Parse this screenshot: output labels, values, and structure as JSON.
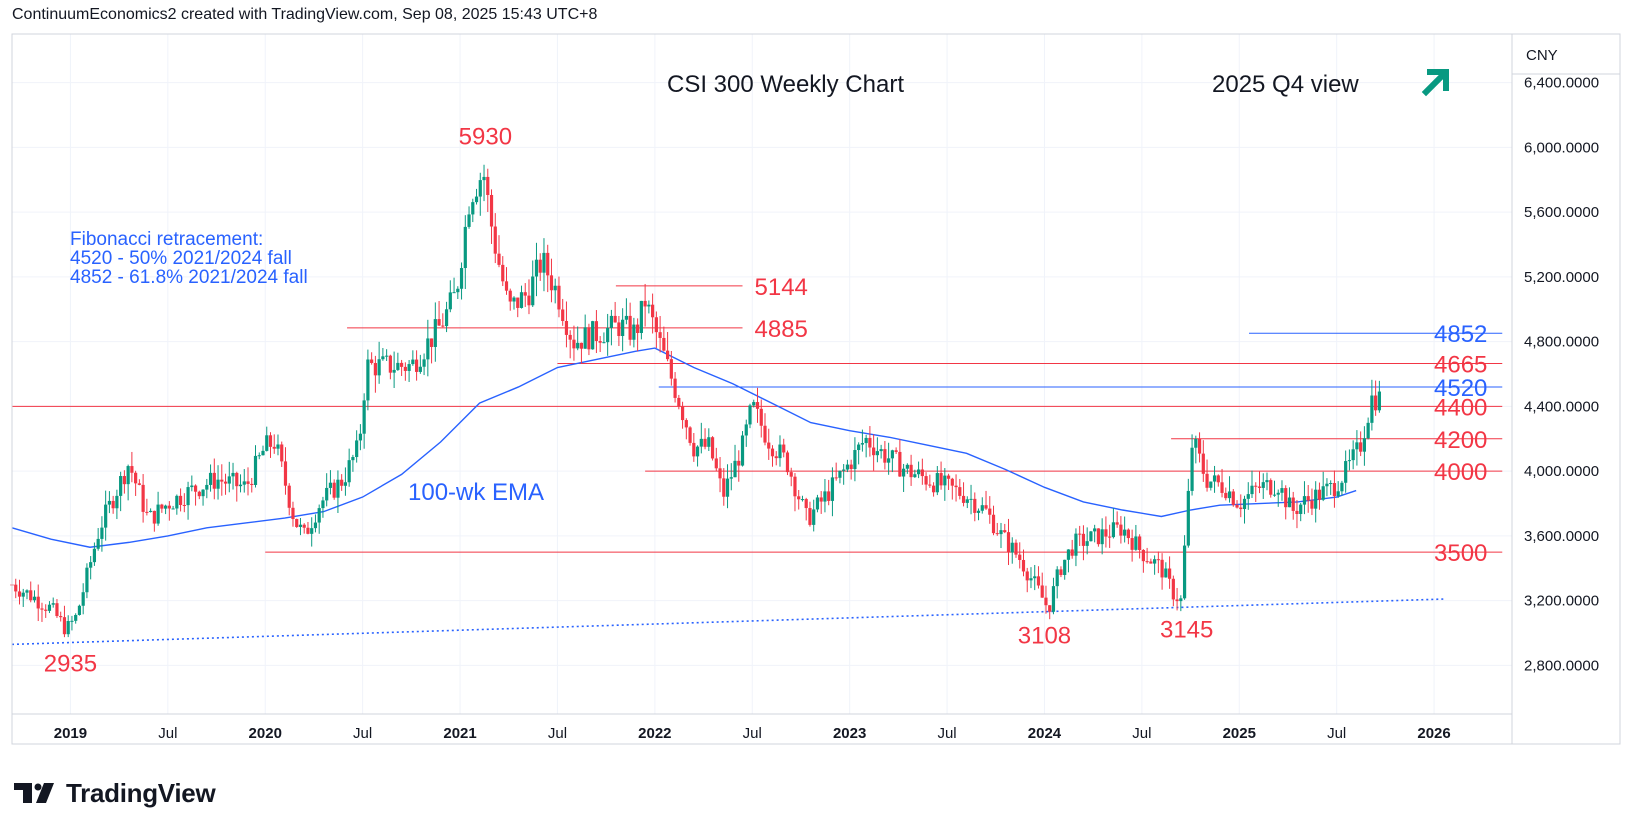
{
  "header": {
    "text": "ContinuumEconomics2 created with TradingView.com, Sep 08, 2025 15:43 UTC+8"
  },
  "footer": {
    "brand": "TradingView"
  },
  "colors": {
    "up": "#089981",
    "down": "#f23645",
    "ema": "#2962ff",
    "level": "#f23645",
    "fib": "#2962ff",
    "arrow": "#089981"
  },
  "chart_data": {
    "type": "candlestick",
    "title": "CSI 300 Weekly Chart",
    "subtitle": "2025 Q4 view",
    "currency": "CNY",
    "ylim": [
      2500,
      6700
    ],
    "y_ticks": [
      "6,400.0000",
      "6,000.0000",
      "5,600.0000",
      "5,200.0000",
      "4,800.0000",
      "4,400.0000",
      "4,000.0000",
      "3,600.0000",
      "3,200.0000",
      "2,800.0000"
    ],
    "y_tick_values": [
      6400,
      6000,
      5600,
      5200,
      4800,
      4400,
      4000,
      3600,
      3200,
      2800
    ],
    "x_range": [
      2018.7,
      2026.4
    ],
    "x_ticks": [
      {
        "label": "2019",
        "t": 2019.0,
        "bold": true
      },
      {
        "label": "Jul",
        "t": 2019.5,
        "bold": false
      },
      {
        "label": "2020",
        "t": 2020.0,
        "bold": true
      },
      {
        "label": "Jul",
        "t": 2020.5,
        "bold": false
      },
      {
        "label": "2021",
        "t": 2021.0,
        "bold": true
      },
      {
        "label": "Jul",
        "t": 2021.5,
        "bold": false
      },
      {
        "label": "2022",
        "t": 2022.0,
        "bold": true
      },
      {
        "label": "Jul",
        "t": 2022.5,
        "bold": false
      },
      {
        "label": "2023",
        "t": 2023.0,
        "bold": true
      },
      {
        "label": "Jul",
        "t": 2023.5,
        "bold": false
      },
      {
        "label": "2024",
        "t": 2024.0,
        "bold": true
      },
      {
        "label": "Jul",
        "t": 2024.5,
        "bold": false
      },
      {
        "label": "2025",
        "t": 2025.0,
        "bold": true
      },
      {
        "label": "Jul",
        "t": 2025.5,
        "bold": false
      },
      {
        "label": "2026",
        "t": 2026.0,
        "bold": true
      }
    ],
    "price_path": [
      [
        2018.7,
        3300
      ],
      [
        2018.8,
        3230
      ],
      [
        2018.9,
        3150
      ],
      [
        2018.98,
        3020
      ],
      [
        2019.03,
        3100
      ],
      [
        2019.15,
        3650
      ],
      [
        2019.3,
        4050
      ],
      [
        2019.4,
        3700
      ],
      [
        2019.5,
        3800
      ],
      [
        2019.62,
        3880
      ],
      [
        2019.75,
        3950
      ],
      [
        2019.9,
        3900
      ],
      [
        2020.0,
        4150
      ],
      [
        2020.05,
        4180
      ],
      [
        2020.15,
        3700
      ],
      [
        2020.2,
        3600
      ],
      [
        2020.28,
        3800
      ],
      [
        2020.4,
        3950
      ],
      [
        2020.48,
        4150
      ],
      [
        2020.52,
        4650
      ],
      [
        2020.62,
        4650
      ],
      [
        2020.75,
        4650
      ],
      [
        2020.9,
        4900
      ],
      [
        2020.98,
        5100
      ],
      [
        2021.05,
        5700
      ],
      [
        2021.12,
        5850
      ],
      [
        2021.17,
        5450
      ],
      [
        2021.25,
        5000
      ],
      [
        2021.35,
        5100
      ],
      [
        2021.42,
        5300
      ],
      [
        2021.5,
        5100
      ],
      [
        2021.58,
        4800
      ],
      [
        2021.7,
        4850
      ],
      [
        2021.82,
        4900
      ],
      [
        2021.9,
        4850
      ],
      [
        2021.95,
        5050
      ],
      [
        2022.05,
        4700
      ],
      [
        2022.12,
        4450
      ],
      [
        2022.2,
        4150
      ],
      [
        2022.28,
        4150
      ],
      [
        2022.35,
        3850
      ],
      [
        2022.45,
        4150
      ],
      [
        2022.5,
        4400
      ],
      [
        2022.58,
        4200
      ],
      [
        2022.68,
        4050
      ],
      [
        2022.78,
        3700
      ],
      [
        2022.88,
        3850
      ],
      [
        2023.0,
        4050
      ],
      [
        2023.08,
        4200
      ],
      [
        2023.18,
        4100
      ],
      [
        2023.3,
        4000
      ],
      [
        2023.4,
        3950
      ],
      [
        2023.5,
        3900
      ],
      [
        2023.6,
        3850
      ],
      [
        2023.7,
        3750
      ],
      [
        2023.78,
        3600
      ],
      [
        2023.88,
        3450
      ],
      [
        2023.95,
        3300
      ],
      [
        2024.02,
        3150
      ],
      [
        2024.08,
        3400
      ],
      [
        2024.15,
        3550
      ],
      [
        2024.28,
        3600
      ],
      [
        2024.4,
        3650
      ],
      [
        2024.5,
        3500
      ],
      [
        2024.6,
        3400
      ],
      [
        2024.66,
        3250
      ],
      [
        2024.7,
        3200
      ],
      [
        2024.73,
        3700
      ],
      [
        2024.76,
        4200
      ],
      [
        2024.83,
        3950
      ],
      [
        2024.93,
        3900
      ],
      [
        2025.0,
        3800
      ],
      [
        2025.1,
        3900
      ],
      [
        2025.2,
        3920
      ],
      [
        2025.27,
        3750
      ],
      [
        2025.32,
        3800
      ],
      [
        2025.4,
        3850
      ],
      [
        2025.48,
        3900
      ],
      [
        2025.55,
        4000
      ],
      [
        2025.62,
        4150
      ],
      [
        2025.68,
        4450
      ],
      [
        2025.72,
        4450
      ]
    ],
    "ema": [
      [
        2018.7,
        3650
      ],
      [
        2018.9,
        3580
      ],
      [
        2019.1,
        3530
      ],
      [
        2019.3,
        3560
      ],
      [
        2019.5,
        3600
      ],
      [
        2019.7,
        3650
      ],
      [
        2019.9,
        3680
      ],
      [
        2020.1,
        3710
      ],
      [
        2020.3,
        3750
      ],
      [
        2020.5,
        3840
      ],
      [
        2020.7,
        3980
      ],
      [
        2020.9,
        4180
      ],
      [
        2021.1,
        4420
      ],
      [
        2021.3,
        4520
      ],
      [
        2021.5,
        4640
      ],
      [
        2021.7,
        4690
      ],
      [
        2021.9,
        4740
      ],
      [
        2022.0,
        4760
      ],
      [
        2022.2,
        4640
      ],
      [
        2022.4,
        4540
      ],
      [
        2022.6,
        4420
      ],
      [
        2022.8,
        4300
      ],
      [
        2023.0,
        4250
      ],
      [
        2023.2,
        4210
      ],
      [
        2023.4,
        4160
      ],
      [
        2023.6,
        4110
      ],
      [
        2023.8,
        4010
      ],
      [
        2024.0,
        3900
      ],
      [
        2024.2,
        3810
      ],
      [
        2024.4,
        3760
      ],
      [
        2024.6,
        3720
      ],
      [
        2024.75,
        3760
      ],
      [
        2024.9,
        3790
      ],
      [
        2025.1,
        3800
      ],
      [
        2025.3,
        3810
      ],
      [
        2025.5,
        3840
      ],
      [
        2025.6,
        3880
      ]
    ],
    "trendline": {
      "from": [
        2018.7,
        2930
      ],
      "to": [
        2026.05,
        3210
      ]
    },
    "levels": [
      {
        "label": "5144",
        "value": 5144,
        "from": 2021.8,
        "to": 2022.45,
        "color": "red"
      },
      {
        "label": "4885",
        "value": 4885,
        "from": 2020.42,
        "to": 2022.45,
        "color": "red"
      },
      {
        "label": "4852",
        "value": 4852,
        "from": 2025.05,
        "to": 2026.35,
        "color": "blue"
      },
      {
        "label": "4665",
        "value": 4665,
        "from": 2021.5,
        "to": 2026.35,
        "color": "red"
      },
      {
        "label": "4520",
        "value": 4520,
        "from": 2022.02,
        "to": 2026.35,
        "color": "blue"
      },
      {
        "label": "4400",
        "value": 4400,
        "from": 2018.7,
        "to": 2026.35,
        "color": "red"
      },
      {
        "label": "4200",
        "value": 4200,
        "from": 2024.65,
        "to": 2026.35,
        "color": "red"
      },
      {
        "label": "4000",
        "value": 4000,
        "from": 2021.95,
        "to": 2026.35,
        "color": "red"
      },
      {
        "label": "3500",
        "value": 3500,
        "from": 2020.0,
        "to": 2026.35,
        "color": "red"
      }
    ],
    "point_labels": [
      {
        "label": "5930",
        "t": 2021.13,
        "value": 5930
      },
      {
        "label": "2935",
        "t": 2019.0,
        "value": 2935
      },
      {
        "label": "3108",
        "t": 2024.0,
        "value": 3108
      },
      {
        "label": "3145",
        "t": 2024.73,
        "value": 3145
      }
    ],
    "annotations": {
      "ema_label": "100-wk EMA",
      "fib_title": "Fibonacci retracement:",
      "fib_line1": "4520 - 50% 2021/2024 fall",
      "fib_line2": "4852 - 61.8% 2021/2024 fall"
    }
  }
}
